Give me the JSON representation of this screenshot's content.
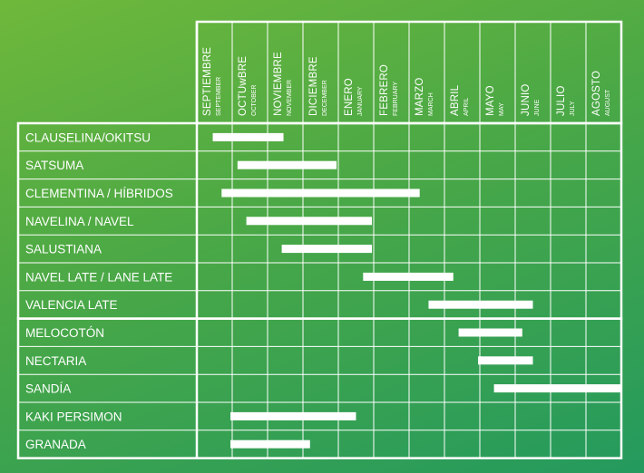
{
  "chart_data": {
    "type": "gantt",
    "title": "",
    "months": [
      {
        "main": "SEPTIEMBRE",
        "sub": "SEPTEMBER"
      },
      {
        "main": "OCTUwBRE",
        "sub": "OCTOBER"
      },
      {
        "main": "NOVIEMBRE",
        "sub": "NOVEMBER"
      },
      {
        "main": "DICIEMBRE",
        "sub": "DECEMBER"
      },
      {
        "main": "ENERO",
        "sub": "JANUARY"
      },
      {
        "main": "FEBRERO",
        "sub": "FEBRUARY"
      },
      {
        "main": "MARZO",
        "sub": "MARCH"
      },
      {
        "main": "ABRIL",
        "sub": "APRIL"
      },
      {
        "main": "MAYO",
        "sub": "MAY"
      },
      {
        "main": "JUNIO",
        "sub": "JUNE"
      },
      {
        "main": "JULIO",
        "sub": "JULY"
      },
      {
        "main": "AGOSTO",
        "sub": "AUGUST"
      }
    ],
    "groups": [
      {
        "rows": [
          {
            "label": "CLAUSELINA/OKITSU",
            "start": 0.45,
            "end": 2.45
          },
          {
            "label": "SATSUMA",
            "start": 1.15,
            "end": 3.95
          },
          {
            "label": "CLEMENTINA / HÍBRIDOS",
            "start": 0.7,
            "end": 6.3
          },
          {
            "label": "NAVELINA / NAVEL",
            "start": 1.4,
            "end": 4.95
          },
          {
            "label": "SALUSTIANA",
            "start": 2.4,
            "end": 4.95
          },
          {
            "label": "NAVEL LATE / LANE LATE",
            "start": 4.7,
            "end": 7.25
          },
          {
            "label": "VALENCIA LATE",
            "start": 6.55,
            "end": 9.5
          }
        ]
      },
      {
        "rows": [
          {
            "label": "MELOCOTÓN",
            "start": 7.4,
            "end": 9.2
          },
          {
            "label": "NECTARIA",
            "start": 7.95,
            "end": 9.5
          },
          {
            "label": "SANDÍA",
            "start": 8.4,
            "end": 12
          },
          {
            "label": "KAKI PERSIMON",
            "start": 0.95,
            "end": 4.5
          },
          {
            "label": "GRANADA",
            "start": 0.95,
            "end": 3.2
          }
        ]
      }
    ]
  },
  "colors": {
    "line": "#ffffff",
    "bar": "#ffffff"
  }
}
